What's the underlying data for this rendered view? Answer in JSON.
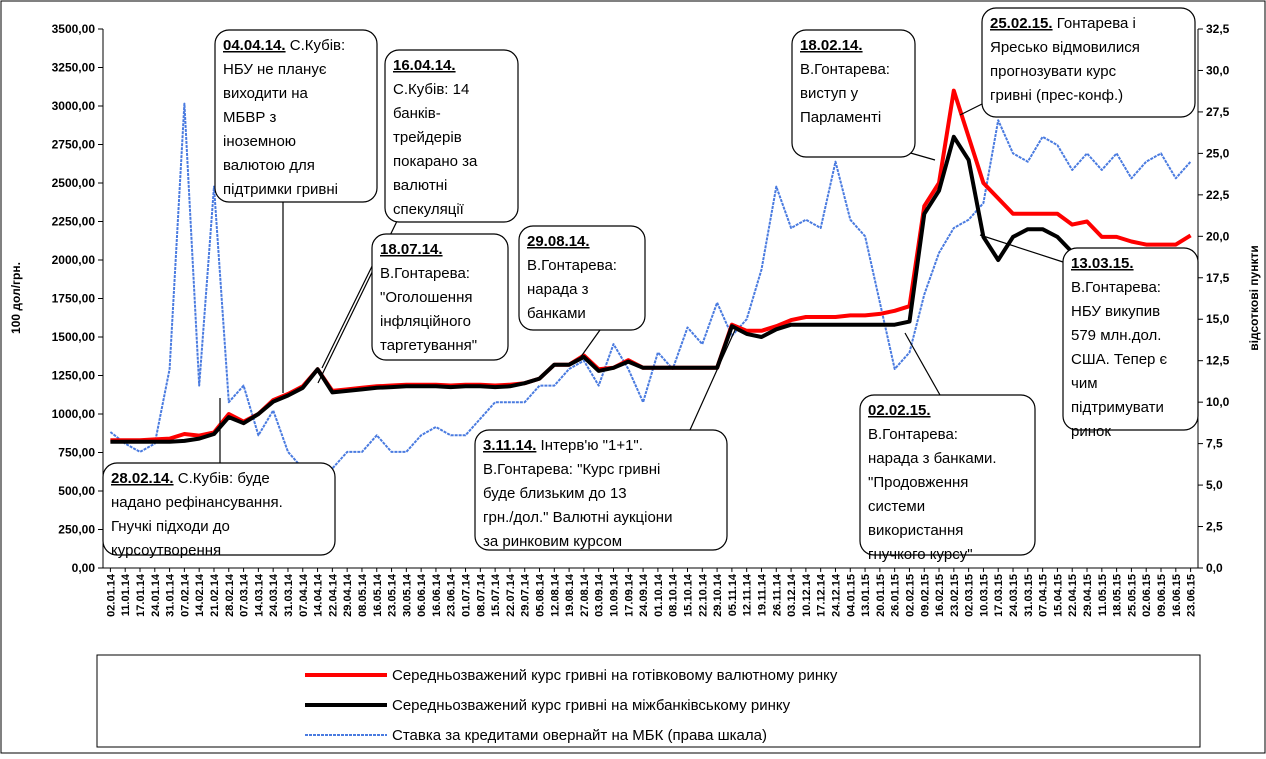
{
  "chart_data": {
    "type": "line",
    "ylabel": "100 дол/грн.",
    "y2label": "відсоткові пункти",
    "categories": [
      "02.01.14",
      "11.01.14",
      "17.01.14",
      "24.01.14",
      "31.01.14",
      "07.02.14",
      "14.02.14",
      "21.02.14",
      "28.02.14",
      "07.03.14",
      "14.03.14",
      "24.03.14",
      "31.03.14",
      "07.04.14",
      "14.04.14",
      "22.04.14",
      "29.04.14",
      "08.05.14",
      "16.05.14",
      "23.05.14",
      "30.05.14",
      "06.06.14",
      "16.06.14",
      "23.06.14",
      "01.07.14",
      "08.07.14",
      "15.07.14",
      "22.07.14",
      "29.07.14",
      "05.08.14",
      "12.08.14",
      "19.08.14",
      "27.08.14",
      "03.09.14",
      "10.09.14",
      "17.09.14",
      "24.09.14",
      "01.10.14",
      "08.10.14",
      "15.10.14",
      "22.10.14",
      "29.10.14",
      "05.11.14",
      "12.11.14",
      "19.11.14",
      "26.11.14",
      "03.12.14",
      "10.12.14",
      "17.12.14",
      "24.12.14",
      "04.01.15",
      "13.01.15",
      "20.01.15",
      "26.01.15",
      "02.02.15",
      "09.02.15",
      "16.02.15",
      "23.02.15",
      "02.03.15",
      "10.03.15",
      "17.03.15",
      "24.03.15",
      "31.03.15",
      "07.04.15",
      "15.04.15",
      "22.04.15",
      "29.04.15",
      "11.05.15",
      "18.05.15",
      "25.05.15",
      "02.06.15",
      "09.06.15",
      "16.06.15",
      "23.06.15"
    ],
    "series": [
      {
        "name": "Середньозважений курс гривні на готівковому валютному ринку",
        "color": "#ff0000",
        "values": [
          830,
          830,
          830,
          835,
          840,
          870,
          860,
          880,
          1000,
          950,
          1000,
          1090,
          1130,
          1180,
          1290,
          1150,
          1160,
          1170,
          1180,
          1185,
          1190,
          1190,
          1190,
          1185,
          1190,
          1190,
          1185,
          1190,
          1200,
          1230,
          1320,
          1320,
          1380,
          1290,
          1300,
          1350,
          1300,
          1300,
          1300,
          1300,
          1300,
          1300,
          1580,
          1540,
          1540,
          1570,
          1610,
          1630,
          1630,
          1630,
          1640,
          1640,
          1650,
          1670,
          1700,
          2350,
          2500,
          3100,
          2800,
          2500,
          2400,
          2300,
          2300,
          2300,
          2300,
          2230,
          2250,
          2150,
          2150,
          2120,
          2100,
          2100,
          2100,
          2160
        ]
      },
      {
        "name": "Середньозважений курс гривні на міжбанківському ринку",
        "color": "#000000",
        "values": [
          820,
          820,
          820,
          820,
          820,
          825,
          840,
          870,
          980,
          940,
          1000,
          1080,
          1120,
          1170,
          1290,
          1140,
          1150,
          1160,
          1170,
          1175,
          1180,
          1180,
          1180,
          1175,
          1180,
          1180,
          1175,
          1180,
          1200,
          1230,
          1320,
          1320,
          1370,
          1280,
          1300,
          1340,
          1300,
          1300,
          1300,
          1300,
          1300,
          1300,
          1570,
          1520,
          1500,
          1550,
          1580,
          1580,
          1580,
          1580,
          1580,
          1580,
          1580,
          1580,
          1600,
          2300,
          2450,
          2800,
          2650,
          2150,
          2000,
          2150,
          2200,
          2200,
          2150,
          2050,
          2050,
          2000,
          2000,
          1980,
          1980,
          1980,
          1990,
          1970
        ]
      },
      {
        "name": "Ставка за кредитами овернайт на МБК (права шкала)",
        "color": "#4a7be0",
        "axis": "y2",
        "values": [
          8.2,
          7.5,
          7,
          7.5,
          12,
          28,
          11,
          23,
          10,
          11,
          8,
          9.5,
          7,
          6,
          6,
          6,
          7,
          7,
          8,
          7,
          7,
          8,
          8.5,
          8,
          8,
          9,
          10,
          10,
          10,
          11,
          11,
          12,
          12.5,
          11,
          13.5,
          12,
          10,
          13,
          12,
          14.5,
          13.5,
          16,
          14,
          15,
          18,
          23,
          20.5,
          21,
          20.5,
          24.5,
          21,
          20,
          16,
          12,
          13,
          16.5,
          19,
          20.5,
          21,
          22,
          27,
          25,
          24.5,
          26,
          25.5,
          24,
          25,
          24,
          25,
          23.5,
          24.5,
          25,
          23.5,
          24.5
        ]
      }
    ],
    "ylim": [
      0,
      3500
    ],
    "yticks": [
      {
        "value": 0,
        "label": "0,00"
      },
      {
        "value": 250,
        "label": "250,00"
      },
      {
        "value": 500,
        "label": "500,00"
      },
      {
        "value": 750,
        "label": "750,00"
      },
      {
        "value": 1000,
        "label": "1000,00"
      },
      {
        "value": 1250,
        "label": "1250,00"
      },
      {
        "value": 1500,
        "label": "1500,00"
      },
      {
        "value": 1750,
        "label": "1750,00"
      },
      {
        "value": 2000,
        "label": "2000,00"
      },
      {
        "value": 2250,
        "label": "2250,00"
      },
      {
        "value": 2500,
        "label": "2500,00"
      },
      {
        "value": 2750,
        "label": "2750,00"
      },
      {
        "value": 3000,
        "label": "3000,00"
      },
      {
        "value": 3250,
        "label": "3250,00"
      },
      {
        "value": 3500,
        "label": "3500,00"
      }
    ],
    "y2lim": [
      0,
      32.5
    ],
    "y2ticks": [
      {
        "value": 0,
        "label": "0,0"
      },
      {
        "value": 2.5,
        "label": "2,5"
      },
      {
        "value": 5,
        "label": "5,0"
      },
      {
        "value": 7.5,
        "label": "7,5"
      },
      {
        "value": 10,
        "label": "10,0"
      },
      {
        "value": 12.5,
        "label": "12,5"
      },
      {
        "value": 15,
        "label": "15,0"
      },
      {
        "value": 17.5,
        "label": "17,5"
      },
      {
        "value": 20,
        "label": "20,0"
      },
      {
        "value": 22.5,
        "label": "22,5"
      },
      {
        "value": 25,
        "label": "25,0"
      },
      {
        "value": 27.5,
        "label": "27,5"
      },
      {
        "value": 30,
        "label": "30,0"
      },
      {
        "value": 32.5,
        "label": "32,5"
      }
    ],
    "legend": "bottom",
    "annotations": [
      {
        "date": "04.04.14.",
        "lines": [
          " С.Кубів:",
          "НБУ не планує",
          "виходити на",
          "МБВР з",
          "іноземною",
          "валютою для",
          "підтримки гривні"
        ]
      },
      {
        "date": "16.04.14.",
        "lines": [
          "С.Кубів: 14",
          "банків-",
          "трейдерів",
          "покарано за",
          "валютні",
          "спекуляції"
        ]
      },
      {
        "date": "18.07.14.",
        "lines": [
          "В.Гонтарева:",
          "\"Оголошення",
          "інфляційного",
          "таргетування\""
        ]
      },
      {
        "date": "29.08.14.",
        "lines": [
          "В.Гонтарева:",
          "нарада з",
          "банками"
        ]
      },
      {
        "date": "28.02.14.",
        "lines": [
          " С.Кубів: буде",
          "надано рефінансування.",
          "Гнучкі підходи до",
          "курсоутворення"
        ]
      },
      {
        "date": "3.11.14.",
        "lines": [
          " Інтерв'ю \"1+1\".",
          "В.Гонтарева: \"Курс гривні",
          "буде близьким до 13",
          "грн./дол.\" Валютні аукціони",
          "за ринковим курсом"
        ]
      },
      {
        "date": "18.02.14.",
        "lines": [
          "В.Гонтарева:",
          "виступ у",
          "Парламенті"
        ]
      },
      {
        "date": "25.02.15.",
        "lines": [
          " Гонтарева і",
          "Яресько відмовилися",
          "прогнозувати курс",
          "гривні (прес-конф.)"
        ]
      },
      {
        "date": "02.02.15.",
        "lines": [
          "В.Гонтарева:",
          "нарада з банками.",
          "\"Продовження",
          "системи",
          "використання",
          "гнучкого курсу\""
        ]
      },
      {
        "date": "13.03.15.",
        "lines": [
          "В.Гонтарева:",
          "НБУ викупив",
          "579 млн.дол.",
          "США. Тепер є",
          "чим",
          "підтримувати",
          "ринок"
        ]
      }
    ]
  }
}
